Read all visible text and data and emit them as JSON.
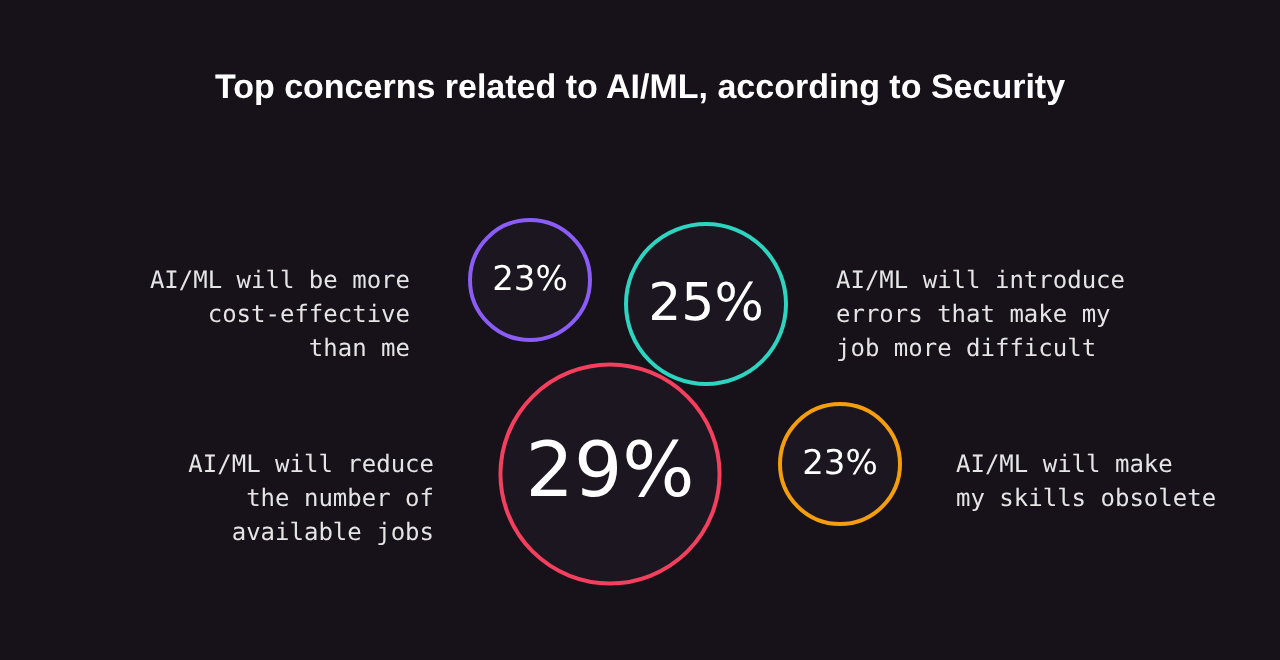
{
  "chart_data": {
    "type": "other",
    "title": "Top concerns related to AI/ML, according to Security",
    "categories": [
      "AI/ML will be more\ncost-effective\nthan me",
      "AI/ML will introduce\nerrors that make my\njob more difficult",
      "AI/ML will reduce\nthe number of\navailable jobs",
      "AI/ML will make\nmy skills obsolete"
    ],
    "values": [
      23,
      25,
      29,
      23
    ],
    "value_labels": [
      "23%",
      "25%",
      "29%",
      "23%"
    ],
    "colors": [
      "#8b5cf6",
      "#2dd4bf",
      "#f43f5e",
      "#f59e0b"
    ]
  }
}
